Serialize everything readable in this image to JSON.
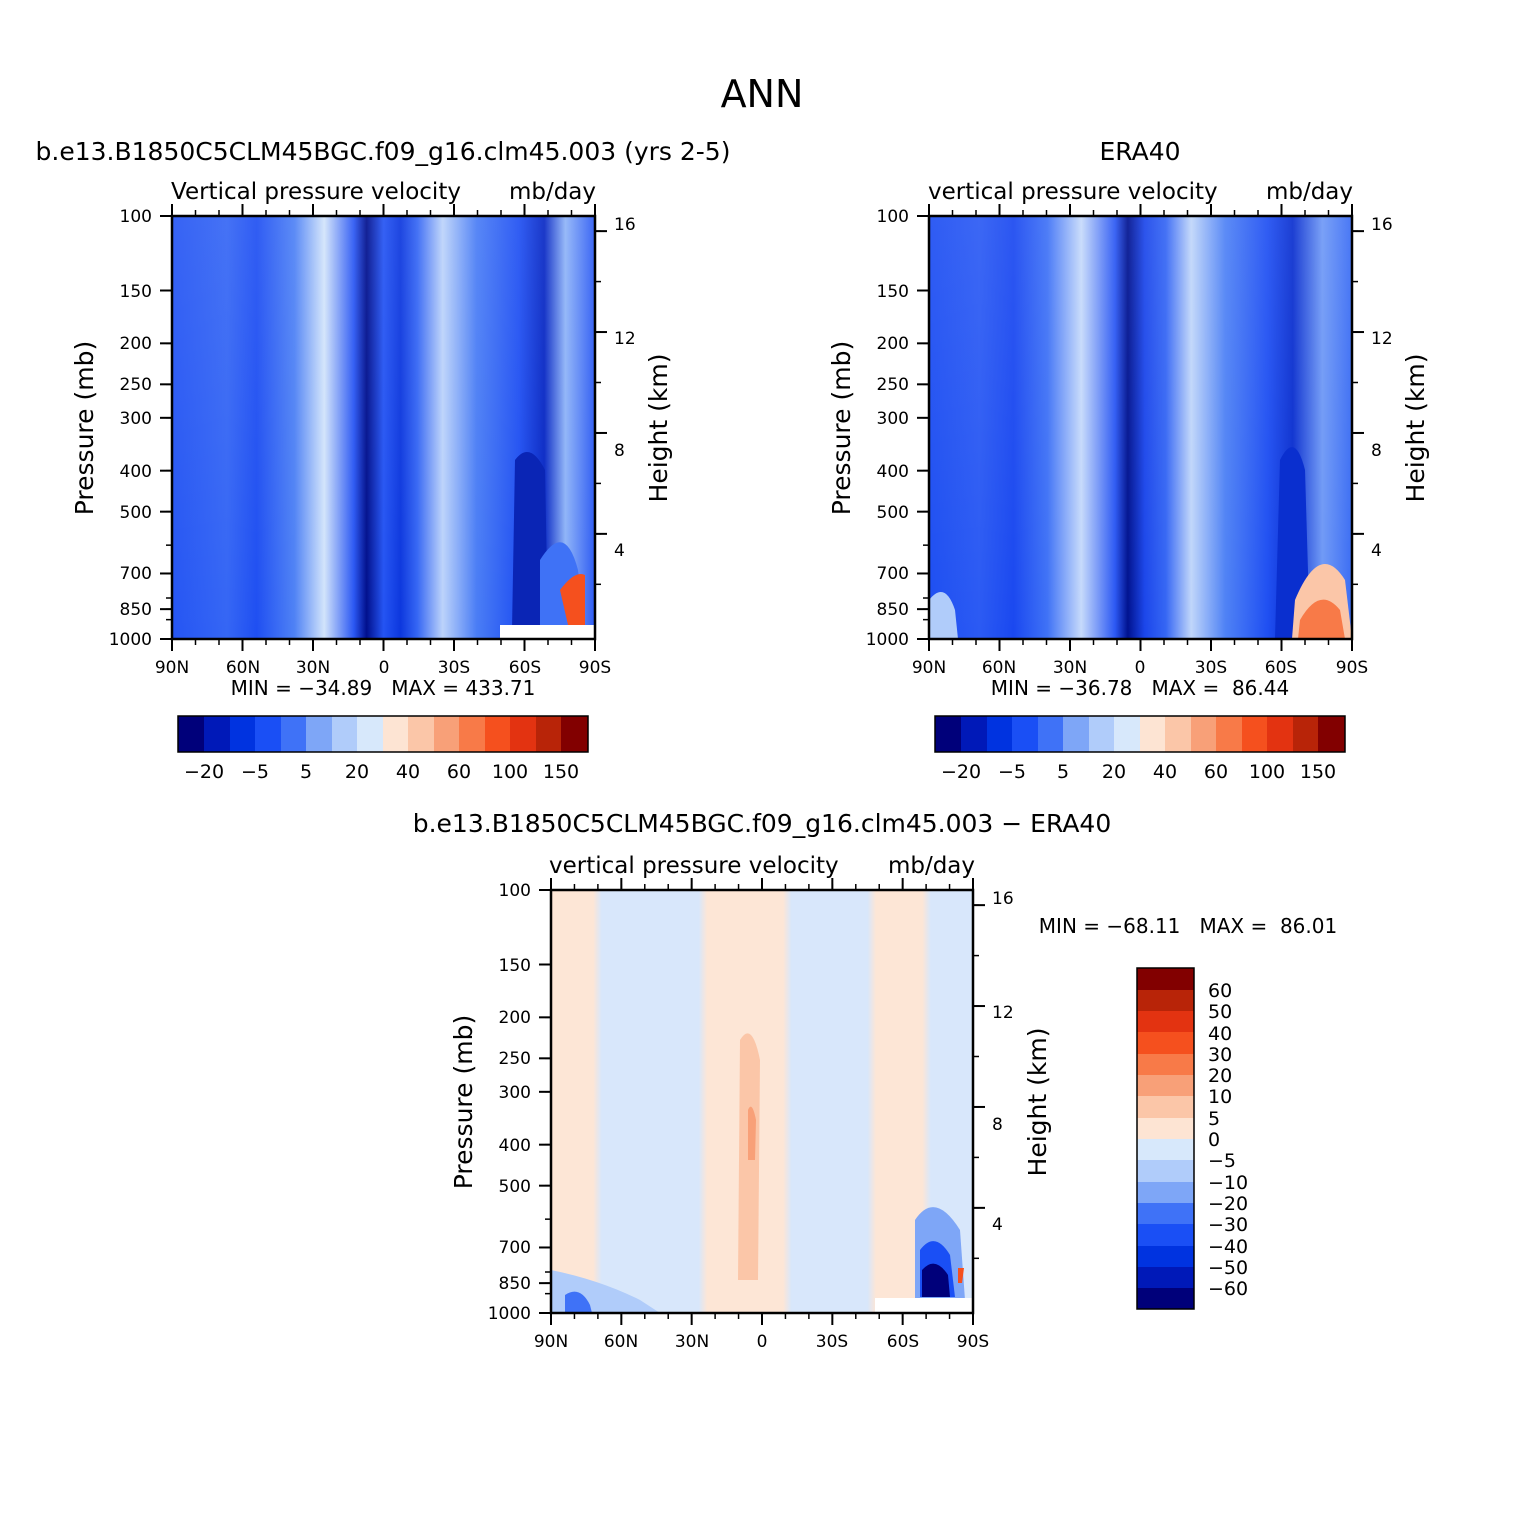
{
  "chart_data": {
    "figure_title": "ANN",
    "x_tick_labels": [
      "90N",
      "60N",
      "30N",
      "0",
      "30S",
      "60S",
      "90S"
    ],
    "y_tick_labels": [
      "100",
      "150",
      "200",
      "250",
      "300",
      "400",
      "500",
      "700",
      "850",
      "1000"
    ],
    "y_tick_values": [
      100,
      150,
      200,
      250,
      300,
      400,
      500,
      700,
      850,
      1000
    ],
    "y2_tick_labels": [
      "16",
      "12",
      "8",
      "4"
    ],
    "y2_tick_values": [
      16,
      12,
      8,
      4
    ],
    "ylabel": "Pressure (mb)",
    "y2label": "Height (km)",
    "panels": [
      {
        "type": "heatmap",
        "title": "b.e13.B1850C5CLM45BGC.f09_g16.clm45.003 (yrs 2-5)",
        "subtitle_left": "Vertical pressure velocity",
        "subtitle_right": "mb/day",
        "stats": "MIN = −34.89   MAX = 433.71",
        "colorbar_labels": [
          "−20",
          "−5",
          "5",
          "20",
          "40",
          "60",
          "100",
          "150"
        ]
      },
      {
        "type": "heatmap",
        "title": "ERA40",
        "subtitle_left": "vertical pressure velocity",
        "subtitle_right": "mb/day",
        "stats": "MIN = −36.78   MAX =  86.44",
        "colorbar_labels": [
          "−20",
          "−5",
          "5",
          "20",
          "40",
          "60",
          "100",
          "150"
        ]
      },
      {
        "type": "heatmap",
        "title": "b.e13.B1850C5CLM45BGC.f09_g16.clm45.003 − ERA40",
        "subtitle_left": "vertical pressure velocity",
        "subtitle_right": "mb/day",
        "stats": "MIN = −68.11   MAX =  86.01",
        "colorbar_labels": [
          "60",
          "50",
          "40",
          "30",
          "20",
          "10",
          "5",
          "0",
          "−5",
          "−10",
          "−20",
          "−30",
          "−40",
          "−50",
          "−60"
        ]
      }
    ],
    "colorbar_colors": [
      "#00007a",
      "#0019b8",
      "#0033e0",
      "#1a4ff5",
      "#3f72f7",
      "#7ea6f7",
      "#b0ccfa",
      "#d7e8fb",
      "#fde4d3",
      "#fbc6a8",
      "#f8a078",
      "#f87a48",
      "#f5501e",
      "#e33311",
      "#b82408",
      "#820000"
    ]
  }
}
